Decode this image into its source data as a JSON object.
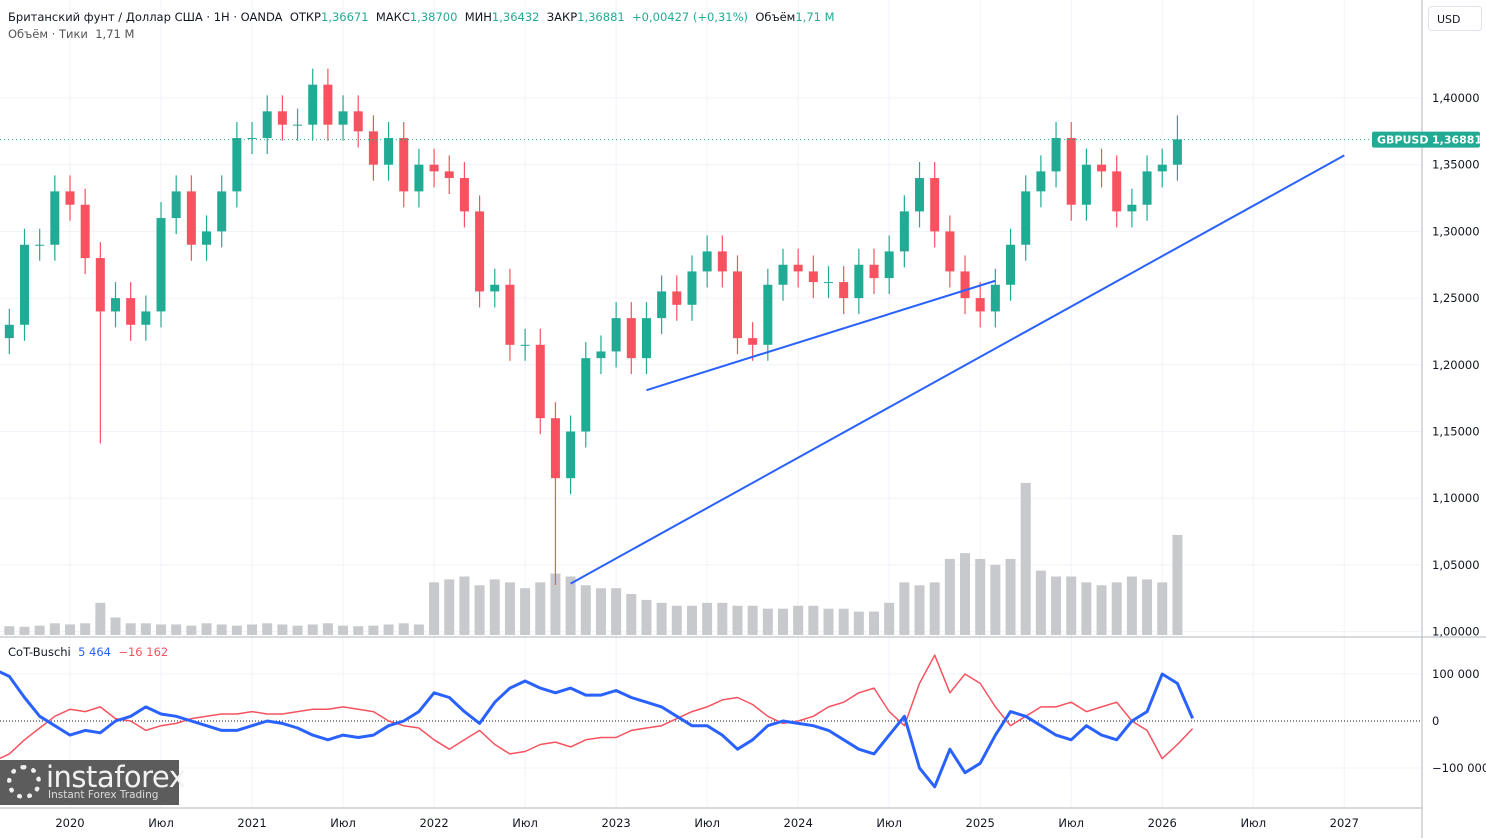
{
  "header": {
    "title": "Британский фунт / Доллар США · 1Н · OANDA",
    "open_label": "ОТКР",
    "open": "1,36671",
    "high_label": "МАКС",
    "high": "1,38700",
    "low_label": "МИН",
    "low": "1,36432",
    "close_label": "ЗАКР",
    "close": "1,36881",
    "change": "+0,00427 (+0,31%)",
    "volume_label": "Объём",
    "volume": "1,71 M",
    "volume_study_label": "Объём · Тики",
    "volume_study_value": "1,71 M"
  },
  "currency_button": "USD",
  "price_tag": {
    "symbol": "GBPUSD",
    "value": "1,36881"
  },
  "watermark": {
    "brand": "instaforex",
    "tagline": "Instant Forex Trading"
  },
  "colors": {
    "up": "#22ab94",
    "down": "#f7525f",
    "trendline": "#2962ff",
    "cot_long": "#2962ff",
    "cot_short": "#f7525f",
    "volume": "#c8c9cc"
  },
  "chart_data": [
    {
      "type": "candlestick",
      "symbol": "GBPUSD",
      "interval": "monthly approximation",
      "start_month": "2019-08",
      "closes": [
        1.22,
        1.23,
        1.29,
        1.29,
        1.33,
        1.32,
        1.28,
        1.24,
        1.25,
        1.23,
        1.24,
        1.31,
        1.33,
        1.29,
        1.3,
        1.33,
        1.37,
        1.37,
        1.39,
        1.38,
        1.38,
        1.41,
        1.38,
        1.39,
        1.375,
        1.35,
        1.37,
        1.33,
        1.35,
        1.345,
        1.34,
        1.315,
        1.255,
        1.26,
        1.215,
        1.215,
        1.16,
        1.115,
        1.15,
        1.205,
        1.21,
        1.235,
        1.205,
        1.235,
        1.255,
        1.245,
        1.27,
        1.285,
        1.27,
        1.22,
        1.215,
        1.26,
        1.275,
        1.27,
        1.262,
        1.262,
        1.25,
        1.275,
        1.265,
        1.285,
        1.315,
        1.34,
        1.3,
        1.27,
        1.25,
        1.24,
        1.26,
        1.29,
        1.33,
        1.345,
        1.37,
        1.32,
        1.35,
        1.345,
        1.315,
        1.32,
        1.345,
        1.35,
        1.369
      ],
      "notable_wicks": [
        {
          "month": "2020-03",
          "low": 1.141
        },
        {
          "month": "2021-06",
          "high": 1.422
        },
        {
          "month": "2022-09",
          "low": 1.035
        },
        {
          "month": "2026-02",
          "high": 1.387
        }
      ],
      "volume_millions": [
        0.12,
        0.15,
        0.14,
        0.16,
        0.2,
        0.18,
        0.2,
        0.55,
        0.3,
        0.2,
        0.2,
        0.18,
        0.18,
        0.16,
        0.2,
        0.18,
        0.16,
        0.18,
        0.2,
        0.18,
        0.16,
        0.18,
        0.2,
        0.16,
        0.15,
        0.16,
        0.18,
        0.2,
        0.18,
        0.9,
        0.95,
        1.0,
        0.85,
        0.95,
        0.9,
        0.8,
        0.9,
        1.05,
        1.0,
        0.85,
        0.8,
        0.8,
        0.7,
        0.6,
        0.55,
        0.5,
        0.5,
        0.55,
        0.55,
        0.5,
        0.5,
        0.45,
        0.45,
        0.5,
        0.5,
        0.45,
        0.45,
        0.4,
        0.4,
        0.55,
        0.9,
        0.85,
        0.9,
        1.3,
        1.4,
        1.3,
        1.2,
        1.3,
        2.6,
        1.1,
        1.0,
        1.0,
        0.9,
        0.85,
        0.9,
        1.0,
        0.95,
        0.9,
        1.71
      ],
      "y_ticks": [
        "1,00000",
        "1,05000",
        "1,10000",
        "1,15000",
        "1,20000",
        "1,25000",
        "1,30000",
        "1,35000",
        "1,40000"
      ],
      "ylim": [
        1.0,
        1.45
      ],
      "last_price": 1.36881,
      "trendlines": [
        {
          "from": {
            "month": "2023-03",
            "price": 1.181
          },
          "to": {
            "month": "2025-02",
            "price": 1.263
          }
        },
        {
          "from": {
            "month": "2022-10",
            "price": 1.036
          },
          "to": {
            "month": "2027-01",
            "price": 1.357
          }
        }
      ],
      "x_ticks": [
        {
          "month": "2020-01",
          "label": "2020"
        },
        {
          "month": "2020-07",
          "label": "Июл"
        },
        {
          "month": "2021-01",
          "label": "2021"
        },
        {
          "month": "2021-07",
          "label": "Июл"
        },
        {
          "month": "2022-01",
          "label": "2022"
        },
        {
          "month": "2022-07",
          "label": "Июл"
        },
        {
          "month": "2023-01",
          "label": "2023"
        },
        {
          "month": "2023-07",
          "label": "Июл"
        },
        {
          "month": "2024-01",
          "label": "2024"
        },
        {
          "month": "2024-07",
          "label": "Июл"
        },
        {
          "month": "2025-01",
          "label": "2025"
        },
        {
          "month": "2025-07",
          "label": "Июл"
        },
        {
          "month": "2026-01",
          "label": "2026"
        },
        {
          "month": "2026-07",
          "label": "Июл"
        },
        {
          "month": "2027-01",
          "label": "2027"
        }
      ],
      "grid": true
    },
    {
      "type": "line",
      "title": "CoT-Buschi",
      "start_month": "2019-08",
      "last_values": [
        "5 464",
        "−16 162"
      ],
      "y_ticks": [
        "100 000",
        "0",
        "−100 000"
      ],
      "ylim": [
        -150000,
        150000
      ],
      "series": [
        {
          "values": [
            110000,
            95000,
            50000,
            10000,
            -10000,
            -30000,
            -20000,
            -25000,
            0,
            10000,
            30000,
            15000,
            10000,
            0,
            -10000,
            -20000,
            -20000,
            -10000,
            0,
            -5000,
            -15000,
            -30000,
            -40000,
            -30000,
            -35000,
            -30000,
            -10000,
            0,
            20000,
            60000,
            50000,
            20000,
            -5000,
            40000,
            70000,
            85000,
            70000,
            60000,
            70000,
            55000,
            55000,
            65000,
            50000,
            40000,
            30000,
            10000,
            -10000,
            -10000,
            -30000,
            -60000,
            -40000,
            -10000,
            0,
            -5000,
            -10000,
            -20000,
            -40000,
            -60000,
            -70000,
            -30000,
            10000,
            -100000,
            -140000,
            -60000,
            -110000,
            -90000,
            -30000,
            20000,
            10000,
            -10000,
            -30000,
            -40000,
            -10000,
            -30000,
            -40000,
            0,
            20000,
            100000,
            80000,
            5464
          ]
        },
        {
          "values": [
            -85000,
            -70000,
            -40000,
            -15000,
            10000,
            25000,
            20000,
            30000,
            5000,
            0,
            -20000,
            -10000,
            -5000,
            5000,
            10000,
            15000,
            15000,
            20000,
            15000,
            15000,
            20000,
            25000,
            25000,
            30000,
            25000,
            20000,
            0,
            -10000,
            -15000,
            -40000,
            -60000,
            -40000,
            -20000,
            -50000,
            -70000,
            -65000,
            -50000,
            -45000,
            -55000,
            -40000,
            -35000,
            -35000,
            -20000,
            -15000,
            -10000,
            5000,
            20000,
            30000,
            45000,
            50000,
            35000,
            10000,
            -5000,
            0,
            10000,
            30000,
            40000,
            60000,
            70000,
            20000,
            -10000,
            80000,
            140000,
            60000,
            100000,
            80000,
            30000,
            -10000,
            10000,
            30000,
            30000,
            40000,
            20000,
            30000,
            40000,
            0,
            -20000,
            -80000,
            -50000,
            -16162
          ]
        }
      ]
    }
  ]
}
